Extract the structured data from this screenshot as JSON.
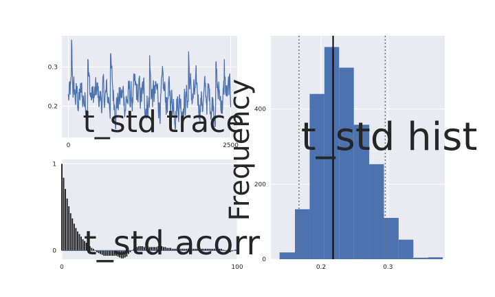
{
  "colors": {
    "panel_bg": "#eaeaf2",
    "grid": "#ffffff",
    "series": "#4c72b0",
    "bar_dark": "#1a1a1a",
    "ref_line": "#000000",
    "dotted": "#707070"
  },
  "chart_data": [
    {
      "type": "line",
      "title": "t_std trace",
      "xlim": [
        -100,
        2600
      ],
      "ylim": [
        0.12,
        0.38
      ],
      "xticks": [
        0,
        2500
      ],
      "yticks": [
        0.2,
        0.3
      ],
      "xtick_labels": [
        "0",
        "2500"
      ],
      "ytick_labels": [
        "0.2",
        "0.3"
      ],
      "grid": true,
      "n_samples": 2500,
      "mean": 0.22,
      "min": 0.13,
      "max": 0.37,
      "peaks": [
        [
          50,
          0.37
        ],
        [
          300,
          0.32
        ],
        [
          650,
          0.33
        ],
        [
          1250,
          0.33
        ],
        [
          1850,
          0.34
        ],
        [
          2270,
          0.31
        ],
        [
          2400,
          0.32
        ]
      ]
    },
    {
      "type": "bar",
      "title": "t_std acorr",
      "xlim": [
        0,
        100
      ],
      "ylim": [
        -0.1,
        1.05
      ],
      "xticks": [
        0,
        100
      ],
      "yticks": [
        0,
        1
      ],
      "xtick_labels": [
        "0",
        "100"
      ],
      "ytick_labels": [
        "0",
        "1"
      ],
      "grid": true,
      "x": [
        0,
        1,
        2,
        3,
        4,
        5,
        6,
        7,
        8,
        9,
        10,
        11,
        12,
        13,
        14,
        15,
        16,
        17,
        18,
        19,
        20,
        21,
        22,
        23,
        24,
        25,
        26,
        27,
        28,
        29,
        30,
        31,
        32,
        33,
        34,
        35,
        36,
        37,
        38,
        39,
        40,
        41,
        42,
        43,
        44,
        45,
        46,
        47,
        48,
        49,
        50,
        51,
        52,
        53,
        54,
        55,
        56,
        57,
        58,
        59,
        60,
        61,
        62,
        63,
        64,
        65,
        66,
        67,
        68,
        69,
        70,
        71,
        72,
        73,
        74,
        75,
        76,
        77,
        78,
        79,
        80,
        81,
        82,
        83,
        84,
        85,
        86,
        87,
        88,
        89,
        90,
        91,
        92,
        93,
        94,
        95,
        96,
        97,
        98,
        99,
        100
      ],
      "values": [
        1.0,
        0.84,
        0.71,
        0.6,
        0.51,
        0.43,
        0.37,
        0.31,
        0.26,
        0.22,
        0.19,
        0.16,
        0.13,
        0.11,
        0.09,
        0.07,
        0.05,
        0.03,
        0.02,
        0.0,
        -0.02,
        -0.03,
        -0.04,
        -0.05,
        -0.06,
        -0.06,
        -0.06,
        -0.06,
        -0.06,
        -0.06,
        -0.06,
        -0.06,
        -0.07,
        -0.08,
        -0.09,
        -0.09,
        -0.08,
        -0.07,
        -0.04,
        -0.02,
        0.0,
        0.02,
        0.03,
        0.04,
        0.05,
        0.05,
        0.05,
        0.04,
        0.05,
        0.05,
        0.04,
        0.04,
        0.04,
        0.04,
        0.04,
        0.05,
        0.05,
        0.05,
        0.04,
        0.04,
        0.03,
        0.03,
        0.03,
        0.02,
        0.02,
        0.02,
        0.02,
        0.02,
        0.02,
        0.02,
        0.02,
        0.02,
        0.02,
        0.02,
        0.02,
        0.02,
        0.02,
        0.02,
        0.02,
        0.02,
        0.02,
        0.02,
        0.02,
        0.02,
        0.02,
        0.02,
        0.02,
        0.02,
        0.02,
        0.02,
        0.02,
        0.02,
        0.01,
        0.0,
        -0.01,
        -0.02,
        -0.02,
        -0.01,
        0.0,
        0.01,
        0.01
      ]
    },
    {
      "type": "bar",
      "title": "t_std hist",
      "ylabel": "Frequency",
      "xlim": [
        0.125,
        0.385
      ],
      "ylim": [
        0,
        595
      ],
      "xticks": [
        0.2,
        0.3
      ],
      "yticks": [
        0,
        200,
        400
      ],
      "xtick_labels": [
        "0.2",
        "0.3"
      ],
      "ytick_labels": [
        "0",
        "200",
        "400"
      ],
      "grid": true,
      "bin_edges": [
        0.138,
        0.161,
        0.183,
        0.205,
        0.227,
        0.249,
        0.272,
        0.294,
        0.316,
        0.338,
        0.36,
        0.382
      ],
      "values": [
        18,
        133,
        440,
        565,
        510,
        358,
        253,
        110,
        52,
        4,
        5
      ],
      "mean_line": 0.218,
      "interval_lines": [
        0.167,
        0.296
      ]
    }
  ]
}
